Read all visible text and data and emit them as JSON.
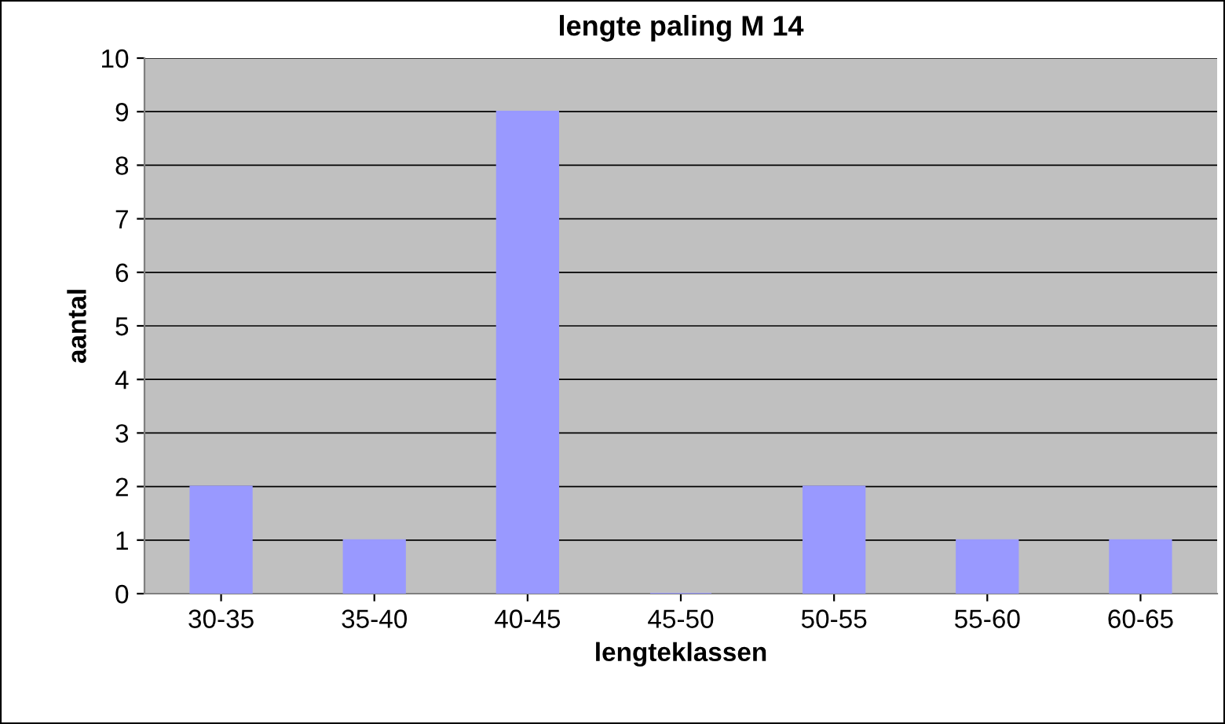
{
  "chart_data": {
    "type": "bar",
    "title": "lengte paling M 14",
    "xlabel": "lengteklassen",
    "ylabel": "aantal",
    "categories": [
      "30-35",
      "35-40",
      "40-45",
      "45-50",
      "50-55",
      "55-60",
      "60-65"
    ],
    "values": [
      2,
      1,
      9,
      0,
      2,
      1,
      1
    ],
    "color": "#9999ff",
    "ylim": [
      0,
      10
    ],
    "yticks": [
      0,
      1,
      2,
      3,
      4,
      5,
      6,
      7,
      8,
      9,
      10
    ],
    "grid": "y",
    "legend": false
  }
}
